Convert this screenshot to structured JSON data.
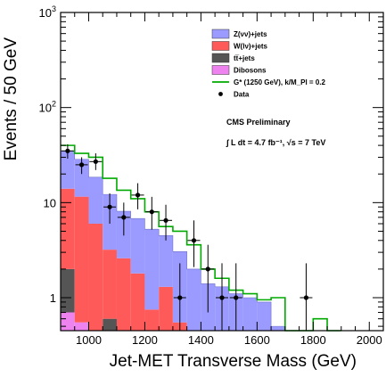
{
  "chart_data": {
    "type": "histogram",
    "xlabel": "Jet-MET Transverse Mass (GeV)",
    "ylabel": "Events / 50 GeV",
    "xlim": [
      900,
      2050
    ],
    "ylim": [
      0.45,
      1000
    ],
    "yscale": "log",
    "x_ticks": [
      "1000",
      "1200",
      "1400",
      "1600",
      "1800",
      "2000"
    ],
    "y_ticks": [
      "1",
      "10",
      "10^2",
      "10^3"
    ],
    "bin_width": 50,
    "bin_edges": [
      900,
      950,
      1000,
      1050,
      1100,
      1150,
      1200,
      1250,
      1300,
      1350,
      1400,
      1450,
      1500,
      1550,
      1600,
      1650,
      1700,
      1750,
      1800,
      1850,
      1900
    ],
    "stacks": [
      {
        "name": "Dibosons",
        "color": "#ee82ee",
        "values": [
          0.7,
          0.55,
          0,
          0,
          0,
          0,
          0,
          0,
          0,
          0,
          0,
          0,
          0,
          0,
          0,
          0,
          0,
          0,
          0,
          0
        ]
      },
      {
        "name": "tt̅+jets",
        "color": "#555555",
        "values": [
          1.3,
          0,
          0,
          0.6,
          0,
          0,
          0,
          0,
          0,
          0,
          0,
          0,
          0,
          0,
          0,
          0,
          0,
          0,
          0,
          0
        ]
      },
      {
        "name": "W(lν)+jets",
        "color": "#ff5a5a",
        "values": [
          12,
          11,
          6,
          2.6,
          2.6,
          1.8,
          0.75,
          1.3,
          0.55,
          0,
          0,
          0,
          0,
          0,
          0,
          0,
          0,
          0,
          0,
          0
        ]
      },
      {
        "name": "Z(νν)+jets",
        "color": "#9b9bff",
        "values": [
          21,
          17,
          12.5,
          9,
          5.5,
          5,
          4.5,
          3.2,
          2.5,
          2.0,
          1.4,
          1.3,
          1.1,
          1.0,
          0.9,
          0.5,
          0,
          0,
          0.1,
          0
        ]
      }
    ],
    "signal": {
      "name": "G* (1250 GeV), k/M_Pl = 0.2",
      "color": "#00aa00",
      "values": [
        40,
        33,
        30,
        18,
        13.5,
        11,
        8,
        5.6,
        5.0,
        3.6,
        2.0,
        1.6,
        1.2,
        1.1,
        0.95,
        1.0,
        0.45,
        0.45,
        0.6,
        0.45
      ]
    },
    "data": {
      "name": "Data",
      "color": "#000000",
      "points": [
        {
          "x": 925,
          "y": 35,
          "lo": 29,
          "hi": 41
        },
        {
          "x": 975,
          "y": 25,
          "lo": 20,
          "hi": 30
        },
        {
          "x": 1025,
          "y": 27,
          "lo": 22,
          "hi": 33
        },
        {
          "x": 1075,
          "y": 9,
          "lo": 6,
          "hi": 12.5
        },
        {
          "x": 1125,
          "y": 7,
          "lo": 4.5,
          "hi": 10
        },
        {
          "x": 1175,
          "y": 12,
          "lo": 8.5,
          "hi": 16
        },
        {
          "x": 1225,
          "y": 8,
          "lo": 5.2,
          "hi": 11.5
        },
        {
          "x": 1275,
          "y": 6.5,
          "lo": 4,
          "hi": 9.5
        },
        {
          "x": 1325,
          "y": 1,
          "lo": 0.45,
          "hi": 2.3
        },
        {
          "x": 1375,
          "y": 4,
          "lo": 2.1,
          "hi": 6.5
        },
        {
          "x": 1425,
          "y": 2,
          "lo": 0.7,
          "hi": 3.6
        },
        {
          "x": 1475,
          "y": 1,
          "lo": 0.45,
          "hi": 2.3
        },
        {
          "x": 1525,
          "y": 1,
          "lo": 0.45,
          "hi": 2.3
        },
        {
          "x": 1775,
          "y": 1,
          "lo": 0.45,
          "hi": 2.3
        }
      ]
    },
    "legend": {
      "placement": "top-right",
      "entries": [
        {
          "label": "Z(νν)+jets",
          "kind": "box",
          "color": "#9b9bff"
        },
        {
          "label": "W(lν)+jets",
          "kind": "box",
          "color": "#ff5a5a"
        },
        {
          "label": "tt̅+jets",
          "kind": "box",
          "color": "#555555"
        },
        {
          "label": "Dibosons",
          "kind": "box",
          "color": "#ee82ee"
        },
        {
          "label": "G* (1250 GeV), k/M_Pl = 0.2",
          "kind": "line",
          "color": "#00aa00"
        },
        {
          "label": "Data",
          "kind": "dot",
          "color": "#000000"
        }
      ]
    },
    "annotations": [
      "CMS Preliminary",
      "∫ L dt = 4.7 fb⁻¹, √s = 7 TeV"
    ]
  }
}
